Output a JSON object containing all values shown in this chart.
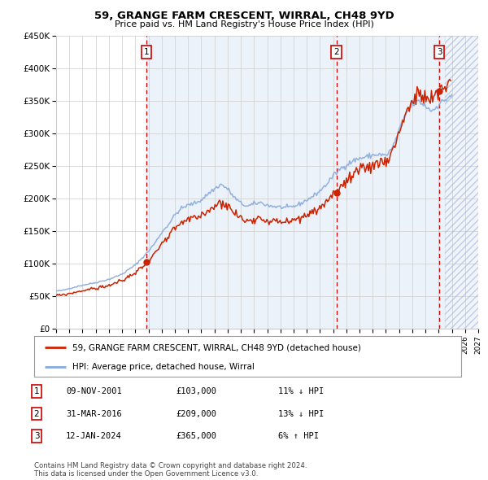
{
  "title": "59, GRANGE FARM CRESCENT, WIRRAL, CH48 9YD",
  "subtitle": "Price paid vs. HM Land Registry's House Price Index (HPI)",
  "xlim": [
    1995,
    2027
  ],
  "ylim": [
    0,
    450000
  ],
  "yticks": [
    0,
    50000,
    100000,
    150000,
    200000,
    250000,
    300000,
    350000,
    400000,
    450000
  ],
  "ytick_labels": [
    "£0",
    "£50K",
    "£100K",
    "£150K",
    "£200K",
    "£250K",
    "£300K",
    "£350K",
    "£400K",
    "£450K"
  ],
  "xticks": [
    1995,
    1996,
    1997,
    1998,
    1999,
    2000,
    2001,
    2002,
    2003,
    2004,
    2005,
    2006,
    2007,
    2008,
    2009,
    2010,
    2011,
    2012,
    2013,
    2014,
    2015,
    2016,
    2017,
    2018,
    2019,
    2020,
    2021,
    2022,
    2023,
    2024,
    2025,
    2026,
    2027
  ],
  "sale_times": [
    2001.86,
    2016.25,
    2024.04
  ],
  "sale_prices": [
    103000,
    209000,
    365000
  ],
  "sale_labels": [
    "1",
    "2",
    "3"
  ],
  "vline_color": "#cc0000",
  "hpi_line_color": "#88aadd",
  "price_line_color": "#cc2200",
  "bg_fill_color": "#dde8f5",
  "future_hatch_color": "#aabbdd",
  "legend_entries": [
    "59, GRANGE FARM CRESCENT, WIRRAL, CH48 9YD (detached house)",
    "HPI: Average price, detached house, Wirral"
  ],
  "table_rows": [
    [
      "1",
      "09-NOV-2001",
      "£103,000",
      "11% ↓ HPI"
    ],
    [
      "2",
      "31-MAR-2016",
      "£209,000",
      "13% ↓ HPI"
    ],
    [
      "3",
      "12-JAN-2024",
      "£365,000",
      "6% ↑ HPI"
    ]
  ],
  "footer": "Contains HM Land Registry data © Crown copyright and database right 2024.\nThis data is licensed under the Open Government Licence v3.0.",
  "bg_color": "#ffffff",
  "grid_color": "#cccccc",
  "future_start": 2024.5
}
